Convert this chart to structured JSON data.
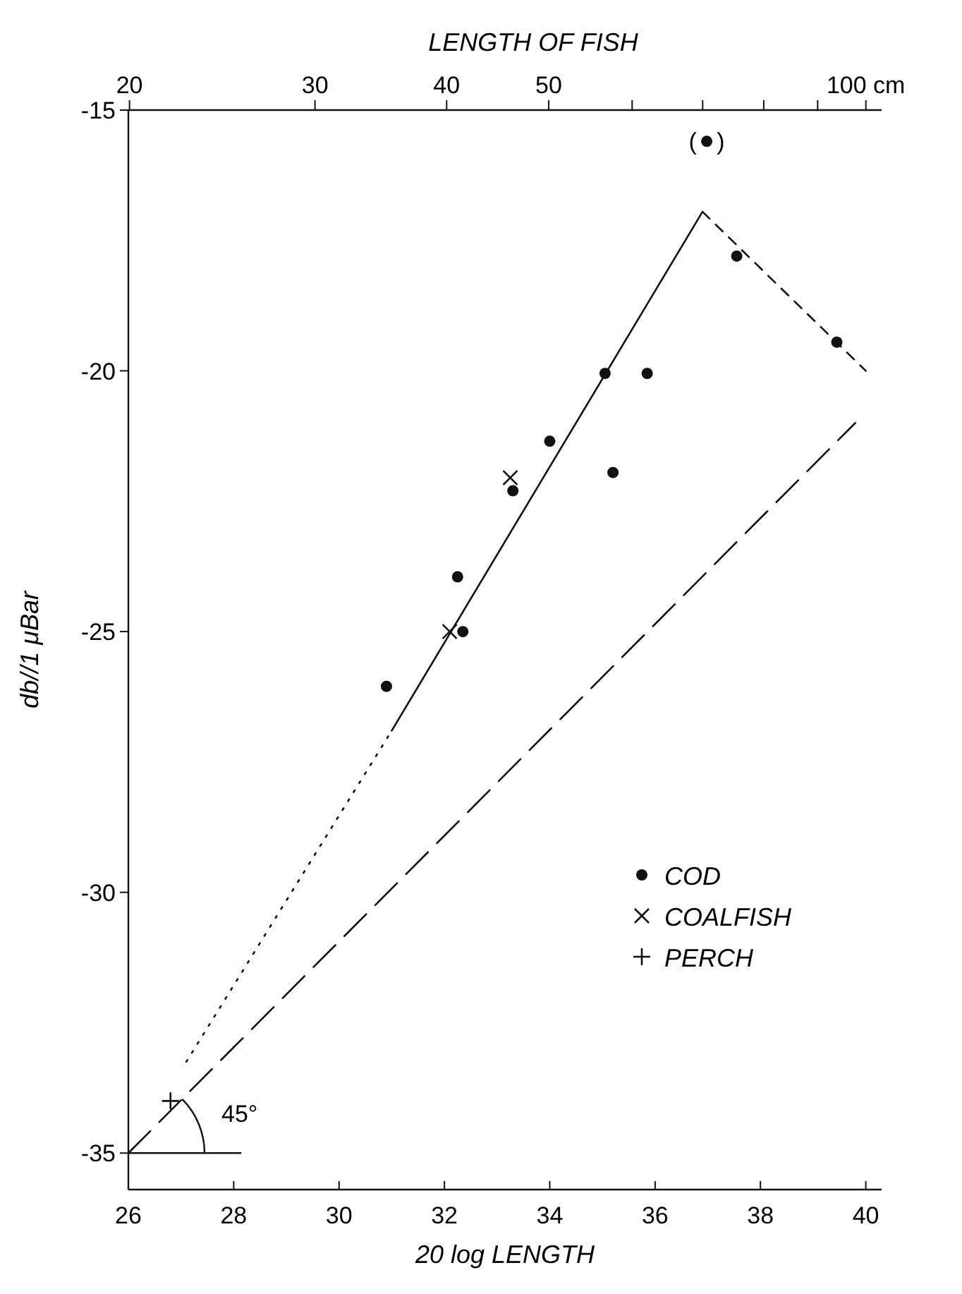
{
  "chart_data": {
    "type": "scatter",
    "xlabel": "20 log LENGTH",
    "ylabel": "db//1 μBar",
    "x2label": "LENGTH OF FISH",
    "xlim": [
      26,
      40.3
    ],
    "ylim": [
      -35.7,
      -15
    ],
    "xticks": [
      26,
      28,
      30,
      32,
      34,
      36,
      38,
      40
    ],
    "yticks": [
      -35,
      -30,
      -25,
      -20,
      -15
    ],
    "x2lim": [
      19.95,
      103.5
    ],
    "log": "x2",
    "x2ticks": [
      20,
      30,
      40,
      50,
      {
        "value": 60,
        "label": null
      },
      {
        "value": 70,
        "label": null
      },
      {
        "value": 80,
        "label": null
      },
      {
        "value": 90,
        "label": null
      },
      {
        "value": 100,
        "label": "100 cm"
      }
    ],
    "grid": false,
    "legend": "right",
    "series": [
      {
        "name": "COD",
        "color": "#111111",
        "marker": "circle",
        "x": [
          30.9,
          32.25,
          32.35,
          33.3,
          34.0,
          35.05,
          35.85,
          35.2,
          37.55,
          39.45,
          36.98
        ],
        "values": [
          -26.05,
          -23.95,
          -25.0,
          -22.3,
          -21.35,
          -20.05,
          -20.05,
          -21.95,
          -17.8,
          -19.45,
          -15.6
        ]
      },
      {
        "name": "COALFISH",
        "color": "#111111",
        "marker": "x",
        "x": [
          32.1,
          33.25
        ],
        "values": [
          -25.0,
          -22.05
        ]
      },
      {
        "name": "PERCH",
        "color": "#111111",
        "marker": "cross",
        "x": [
          26.8
        ],
        "values": [
          -34.0
        ]
      },
      {
        "type": "line",
        "color": "#111111",
        "line_style": "solid",
        "x": [
          31.0,
          36.9
        ],
        "values": [
          -26.9,
          -16.95
        ]
      },
      {
        "type": "line",
        "color": "#111111",
        "line_style": "dotted",
        "x": [
          27.1,
          31.0
        ],
        "values": [
          -33.25,
          -26.9
        ]
      },
      {
        "type": "line",
        "color": "#111111",
        "line_style": "dashed",
        "x": [
          36.9,
          40.0
        ],
        "values": [
          -16.95,
          -20.0
        ]
      },
      {
        "type": "line",
        "color": "#111111",
        "line_style": "longdashed",
        "x": [
          26.0,
          39.8
        ],
        "values": [
          -35.0,
          -21.0
        ]
      }
    ],
    "annotations": [
      {
        "text": "(   )",
        "x": 36.98,
        "y": -15.6
      },
      {
        "text": "45°",
        "x": 26.0,
        "y": -35.0
      }
    ]
  }
}
